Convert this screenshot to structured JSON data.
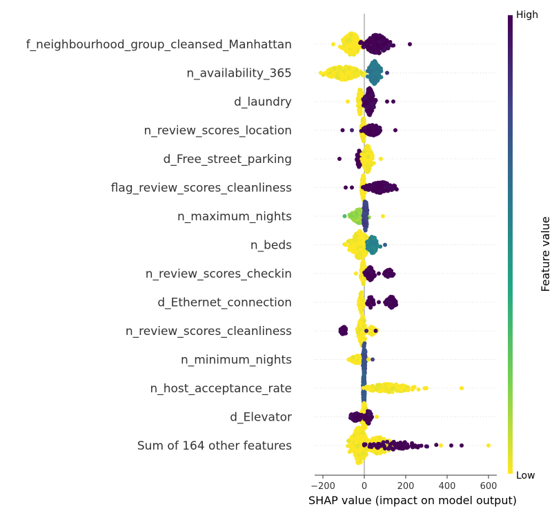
{
  "chart_data": {
    "type": "beeswarm",
    "xlabel": "SHAP value (impact on model output)",
    "xlim": [
      -240,
      640
    ],
    "xticks": [
      -200,
      0,
      200,
      400,
      600
    ],
    "colorbar": {
      "label": "Feature value",
      "high_label": "High",
      "low_label": "Low",
      "colors": [
        "#fde725",
        "#7ad151",
        "#22a884",
        "#2a788e",
        "#414487",
        "#440154"
      ]
    },
    "features": [
      {
        "name": "f_neighbourhood_group_cleansed_Manhattan",
        "clusters": [
          {
            "center": -60,
            "spread": 45,
            "color_value": 0.0,
            "count": 200,
            "height": 16
          },
          {
            "center": 60,
            "spread": 55,
            "color_value": 1.0,
            "count": 200,
            "height": 14
          }
        ],
        "outliers": [
          {
            "x": 220,
            "color_value": 1.0
          },
          {
            "x": -150,
            "color_value": 0.0
          }
        ]
      },
      {
        "name": "n_availability_365",
        "clusters": [
          {
            "center": -100,
            "spread": 80,
            "color_value": 0.0,
            "count": 220,
            "height": 10
          },
          {
            "center": 50,
            "spread": 25,
            "color_value": 0.6,
            "count": 140,
            "height": 18
          }
        ],
        "outliers": [
          {
            "x": -210,
            "color_value": 0.0
          },
          {
            "x": 110,
            "color_value": 0.85
          }
        ]
      },
      {
        "name": "d_laundry",
        "clusters": [
          {
            "center": -20,
            "spread": 10,
            "color_value": 0.0,
            "count": 110,
            "height": 20
          },
          {
            "center": 25,
            "spread": 20,
            "color_value": 1.0,
            "count": 140,
            "height": 20
          }
        ],
        "outliers": [
          {
            "x": -80,
            "color_value": 0.0
          },
          {
            "x": 110,
            "color_value": 1.0
          },
          {
            "x": 140,
            "color_value": 1.0
          }
        ]
      },
      {
        "name": "n_review_scores_location",
        "clusters": [
          {
            "center": -5,
            "spread": 8,
            "color_value": 0.0,
            "count": 110,
            "height": 18
          },
          {
            "center": 40,
            "spread": 40,
            "color_value": 1.0,
            "count": 110,
            "height": 8
          }
        ],
        "outliers": [
          {
            "x": -105,
            "color_value": 1.0
          },
          {
            "x": 150,
            "color_value": 1.0
          },
          {
            "x": -60,
            "color_value": 0.9
          }
        ]
      },
      {
        "name": "d_Free_street_parking",
        "clusters": [
          {
            "center": -25,
            "spread": 12,
            "color_value": 1.0,
            "count": 50,
            "height": 12
          },
          {
            "center": 15,
            "spread": 20,
            "color_value": 0.0,
            "count": 130,
            "height": 20
          }
        ],
        "outliers": [
          {
            "x": -120,
            "color_value": 1.0
          },
          {
            "x": 80,
            "color_value": 0.0
          }
        ]
      },
      {
        "name": "flag_review_scores_cleanliness",
        "clusters": [
          {
            "center": -5,
            "spread": 8,
            "color_value": 0.0,
            "count": 100,
            "height": 18
          },
          {
            "center": 80,
            "spread": 60,
            "color_value": 1.0,
            "count": 160,
            "height": 8
          }
        ],
        "outliers": [
          {
            "x": -90,
            "color_value": 1.0
          },
          {
            "x": -60,
            "color_value": 1.0
          }
        ]
      },
      {
        "name": "n_maximum_nights",
        "clusters": [
          {
            "center": -25,
            "spread": 35,
            "color_value": 0.15,
            "count": 150,
            "height": 10
          },
          {
            "center": 5,
            "spread": 8,
            "color_value": 0.8,
            "count": 80,
            "height": 26
          }
        ],
        "outliers": [
          {
            "x": 90,
            "color_value": 0.0
          },
          {
            "x": -95,
            "color_value": 0.3
          }
        ]
      },
      {
        "name": "n_beds",
        "clusters": [
          {
            "center": -20,
            "spread": 45,
            "color_value": 0.0,
            "count": 220,
            "height": 20
          },
          {
            "center": 40,
            "spread": 25,
            "color_value": 0.55,
            "count": 100,
            "height": 12
          }
        ],
        "outliers": [
          {
            "x": 100,
            "color_value": 0.7
          },
          {
            "x": -90,
            "color_value": 0.0
          }
        ]
      },
      {
        "name": "n_review_scores_checkin",
        "clusters": [
          {
            "center": -5,
            "spread": 10,
            "color_value": 0.0,
            "count": 100,
            "height": 18
          },
          {
            "center": 30,
            "spread": 20,
            "color_value": 1.0,
            "count": 60,
            "height": 10
          },
          {
            "center": 120,
            "spread": 20,
            "color_value": 1.0,
            "count": 50,
            "height": 6
          }
        ],
        "outliers": [
          {
            "x": -40,
            "color_value": 0.0
          },
          {
            "x": 70,
            "color_value": 1.0
          }
        ]
      },
      {
        "name": "d_Ethernet_connection",
        "clusters": [
          {
            "center": -15,
            "spread": 10,
            "color_value": 0.0,
            "count": 80,
            "height": 16
          },
          {
            "center": 30,
            "spread": 15,
            "color_value": 1.0,
            "count": 40,
            "height": 8
          },
          {
            "center": 130,
            "spread": 25,
            "color_value": 1.0,
            "count": 50,
            "height": 8
          }
        ],
        "outliers": [
          {
            "x": 70,
            "color_value": 1.0
          }
        ]
      },
      {
        "name": "n_review_scores_cleanliness",
        "clusters": [
          {
            "center": -10,
            "spread": 18,
            "color_value": 0.0,
            "count": 120,
            "height": 22
          },
          {
            "center": -100,
            "spread": 15,
            "color_value": 1.0,
            "count": 40,
            "height": 6
          },
          {
            "center": 35,
            "spread": 20,
            "color_value": 0.0,
            "count": 60,
            "height": 6
          }
        ],
        "outliers": [
          {
            "x": 55,
            "color_value": 1.0
          },
          {
            "x": 10,
            "color_value": 0.9
          }
        ]
      },
      {
        "name": "n_minimum_nights",
        "clusters": [
          {
            "center": -30,
            "spread": 35,
            "color_value": 0.0,
            "count": 110,
            "height": 6
          },
          {
            "center": 0,
            "spread": 5,
            "color_value": 0.75,
            "count": 80,
            "height": 26
          }
        ],
        "outliers": [
          {
            "x": 40,
            "color_value": 0.8
          },
          {
            "x": 20,
            "color_value": 0.0
          }
        ]
      },
      {
        "name": "n_host_acceptance_rate",
        "clusters": [
          {
            "center": -2,
            "spread": 4,
            "color_value": 0.7,
            "count": 90,
            "height": 26
          },
          {
            "center": 120,
            "spread": 110,
            "color_value": 0.0,
            "count": 150,
            "height": 6
          }
        ],
        "outliers": [
          {
            "x": 470,
            "color_value": 0.0
          },
          {
            "x": 300,
            "color_value": 0.0
          }
        ]
      },
      {
        "name": "d_Elevator",
        "clusters": [
          {
            "center": 0,
            "spread": 12,
            "color_value": 0.0,
            "count": 100,
            "height": 20
          },
          {
            "center": -40,
            "spread": 30,
            "color_value": 1.0,
            "count": 60,
            "height": 6
          },
          {
            "center": 20,
            "spread": 15,
            "color_value": 1.0,
            "count": 40,
            "height": 10
          }
        ],
        "outliers": [
          {
            "x": 60,
            "color_value": 0.0
          }
        ]
      },
      {
        "name": "Sum of 164 other features",
        "clusters": [
          {
            "center": -25,
            "spread": 40,
            "color_value": 0.0,
            "count": 280,
            "height": 26
          },
          {
            "center": 70,
            "spread": 70,
            "color_value": 0.0,
            "count": 140,
            "height": 12
          },
          {
            "center": 150,
            "spread": 120,
            "color_value": 1.0,
            "count": 90,
            "height": 6
          }
        ],
        "outliers": [
          {
            "x": 420,
            "color_value": 1.0
          },
          {
            "x": 470,
            "color_value": 1.0
          },
          {
            "x": 600,
            "color_value": 0.0
          },
          {
            "x": 370,
            "color_value": 0.0
          }
        ]
      }
    ]
  }
}
